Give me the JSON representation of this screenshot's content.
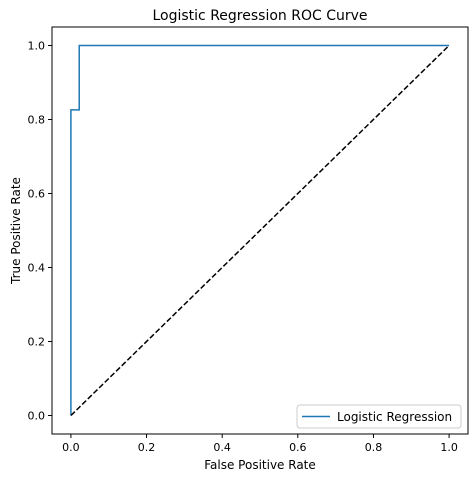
{
  "chart_data": {
    "type": "line",
    "title": "Logistic Regression ROC Curve",
    "xlabel": "False Positive Rate",
    "ylabel": "True Positive Rate",
    "xlim": [
      -0.05,
      1.05
    ],
    "ylim": [
      -0.05,
      1.05
    ],
    "xticks": [
      0.0,
      0.2,
      0.4,
      0.6,
      0.8,
      1.0
    ],
    "yticks": [
      0.0,
      0.2,
      0.4,
      0.6,
      0.8,
      1.0
    ],
    "xtick_labels": [
      "0.0",
      "0.2",
      "0.4",
      "0.6",
      "0.8",
      "1.0"
    ],
    "ytick_labels": [
      "0.0",
      "0.2",
      "0.4",
      "0.6",
      "0.8",
      "1.0"
    ],
    "grid": false,
    "legend_position": "lower-right",
    "series": [
      {
        "name": "Logistic Regression",
        "color": "#1f77b4",
        "style": "solid",
        "x": [
          0.0,
          0.0,
          0.0,
          0.022,
          0.022,
          1.0
        ],
        "y": [
          0.0,
          0.0,
          0.826,
          0.826,
          1.0,
          1.0
        ]
      },
      {
        "color": "#000000",
        "style": "dashed",
        "x": [
          0.0,
          1.0
        ],
        "y": [
          0.0,
          1.0
        ]
      }
    ]
  }
}
